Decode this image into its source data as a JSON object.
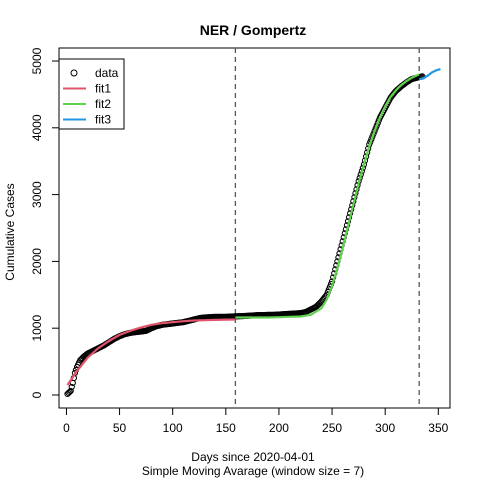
{
  "chart_data": {
    "type": "scatter",
    "title": "NER / Gompertz",
    "xlabel": "Days since 2020-04-01",
    "subcaption": "Simple Moving Avarage (window size = 7)",
    "ylabel": "Cumulative Cases",
    "xlim": [
      -7,
      361
    ],
    "ylim": [
      -195,
      5195
    ],
    "x_ticks": [
      0,
      50,
      100,
      150,
      200,
      250,
      300,
      350
    ],
    "y_ticks": [
      0,
      1000,
      2000,
      3000,
      4000,
      5000
    ],
    "vlines": [
      159,
      332
    ],
    "legend": {
      "position": "top-left",
      "entries": [
        {
          "label": "data",
          "kind": "point",
          "color": "#000000"
        },
        {
          "label": "fit1",
          "kind": "line",
          "color": "#DF536B"
        },
        {
          "label": "fit2",
          "kind": "line",
          "color": "#61D04F"
        },
        {
          "label": "fit3",
          "kind": "line",
          "color": "#2297E6"
        }
      ]
    },
    "data_curve": [
      [
        1,
        15
      ],
      [
        4,
        60
      ],
      [
        6,
        180
      ],
      [
        8,
        330
      ],
      [
        10,
        420
      ],
      [
        13,
        520
      ],
      [
        16,
        570
      ],
      [
        20,
        620
      ],
      [
        25,
        660
      ],
      [
        30,
        700
      ],
      [
        35,
        740
      ],
      [
        40,
        790
      ],
      [
        45,
        840
      ],
      [
        50,
        880
      ],
      [
        55,
        910
      ],
      [
        60,
        930
      ],
      [
        65,
        940
      ],
      [
        70,
        950
      ],
      [
        75,
        960
      ],
      [
        80,
        1000
      ],
      [
        85,
        1030
      ],
      [
        90,
        1050
      ],
      [
        95,
        1060
      ],
      [
        100,
        1070
      ],
      [
        105,
        1080
      ],
      [
        110,
        1090
      ],
      [
        115,
        1110
      ],
      [
        120,
        1130
      ],
      [
        125,
        1150
      ],
      [
        130,
        1160
      ],
      [
        135,
        1165
      ],
      [
        140,
        1170
      ],
      [
        145,
        1170
      ],
      [
        150,
        1170
      ],
      [
        155,
        1175
      ],
      [
        160,
        1178
      ],
      [
        165,
        1180
      ],
      [
        170,
        1185
      ],
      [
        175,
        1190
      ],
      [
        180,
        1195
      ],
      [
        185,
        1195
      ],
      [
        190,
        1200
      ],
      [
        195,
        1200
      ],
      [
        200,
        1205
      ],
      [
        205,
        1210
      ],
      [
        210,
        1215
      ],
      [
        215,
        1220
      ],
      [
        220,
        1225
      ],
      [
        225,
        1240
      ],
      [
        230,
        1280
      ],
      [
        235,
        1320
      ],
      [
        240,
        1400
      ],
      [
        245,
        1500
      ],
      [
        250,
        1700
      ],
      [
        255,
        2000
      ],
      [
        260,
        2300
      ],
      [
        265,
        2600
      ],
      [
        270,
        2900
      ],
      [
        275,
        3200
      ],
      [
        280,
        3450
      ],
      [
        285,
        3750
      ],
      [
        290,
        3950
      ],
      [
        295,
        4150
      ],
      [
        300,
        4300
      ],
      [
        305,
        4450
      ],
      [
        310,
        4550
      ],
      [
        315,
        4620
      ],
      [
        320,
        4680
      ],
      [
        325,
        4730
      ],
      [
        330,
        4750
      ],
      [
        335,
        4770
      ]
    ],
    "series": [
      {
        "name": "fit1",
        "color": "#DF536B",
        "points": [
          [
            1,
            150
          ],
          [
            10,
            360
          ],
          [
            20,
            560
          ],
          [
            30,
            700
          ],
          [
            40,
            810
          ],
          [
            50,
            900
          ],
          [
            60,
            960
          ],
          [
            70,
            1010
          ],
          [
            80,
            1050
          ],
          [
            90,
            1075
          ],
          [
            100,
            1090
          ],
          [
            110,
            1105
          ],
          [
            120,
            1115
          ],
          [
            130,
            1120
          ],
          [
            140,
            1125
          ],
          [
            150,
            1128
          ],
          [
            159,
            1130
          ]
        ]
      },
      {
        "name": "fit2",
        "color": "#61D04F",
        "points": [
          [
            159,
            1160
          ],
          [
            170,
            1160
          ],
          [
            180,
            1160
          ],
          [
            190,
            1160
          ],
          [
            200,
            1165
          ],
          [
            210,
            1170
          ],
          [
            220,
            1175
          ],
          [
            230,
            1200
          ],
          [
            240,
            1300
          ],
          [
            245,
            1430
          ],
          [
            250,
            1630
          ],
          [
            255,
            1900
          ],
          [
            260,
            2200
          ],
          [
            265,
            2520
          ],
          [
            270,
            2850
          ],
          [
            275,
            3170
          ],
          [
            280,
            3450
          ],
          [
            285,
            3720
          ],
          [
            290,
            3950
          ],
          [
            295,
            4150
          ],
          [
            300,
            4320
          ],
          [
            305,
            4460
          ],
          [
            310,
            4560
          ],
          [
            315,
            4640
          ],
          [
            320,
            4700
          ],
          [
            325,
            4750
          ],
          [
            332,
            4800
          ]
        ]
      },
      {
        "name": "fit3",
        "color": "#2297E6",
        "points": [
          [
            332,
            4730
          ],
          [
            336,
            4740
          ],
          [
            340,
            4780
          ],
          [
            344,
            4830
          ],
          [
            348,
            4860
          ],
          [
            352,
            4880
          ]
        ]
      }
    ]
  }
}
